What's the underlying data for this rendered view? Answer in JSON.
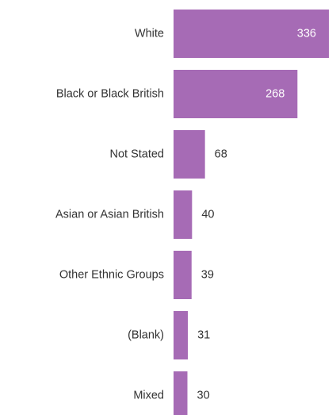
{
  "chart_data": {
    "type": "bar",
    "orientation": "horizontal",
    "categories": [
      "White",
      "Black or Black British",
      "Not Stated",
      "Asian or Asian British",
      "Other Ethnic Groups",
      "(Blank)",
      "Mixed"
    ],
    "values": [
      336,
      268,
      68,
      40,
      39,
      31,
      30
    ],
    "value_labels": [
      "336",
      "268",
      "68",
      "40",
      "39",
      "31",
      "30"
    ],
    "title": "",
    "xlabel": "",
    "ylabel": "",
    "xlim": [
      0,
      336
    ],
    "grid": false,
    "legend": "none",
    "colors": {
      "bar": "#a66bb5",
      "label_inside": "#ffffff",
      "label_outside": "#333333",
      "category_text": "#333333"
    }
  }
}
